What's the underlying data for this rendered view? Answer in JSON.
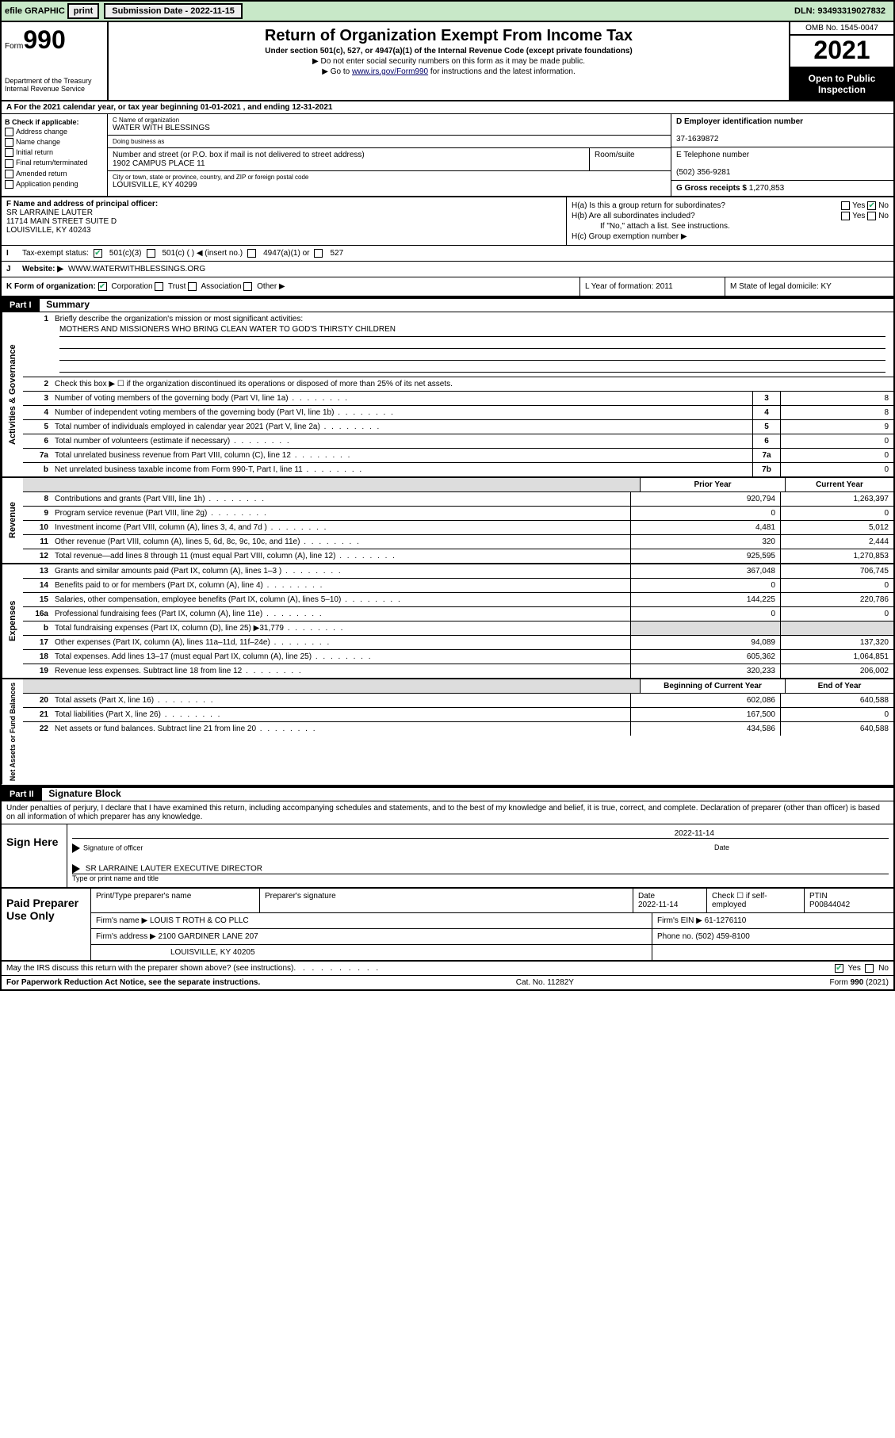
{
  "efile": {
    "label1": "efile GRAPHIC",
    "btn_print": "print",
    "sub_label": "Submission Date - 2022-11-15",
    "dln": "DLN: 93493319027832"
  },
  "header": {
    "form_prefix": "Form",
    "form_no": "990",
    "dept": "Department of the Treasury\nInternal Revenue Service",
    "title": "Return of Organization Exempt From Income Tax",
    "sub1": "Under section 501(c), 527, or 4947(a)(1) of the Internal Revenue Code (except private foundations)",
    "sub2": "▶ Do not enter social security numbers on this form as it may be made public.",
    "sub3_pre": "▶ Go to ",
    "sub3_link": "www.irs.gov/Form990",
    "sub3_post": " for instructions and the latest information.",
    "omb": "OMB No. 1545-0047",
    "year": "2021",
    "open": "Open to Public Inspection"
  },
  "lineA": "A For the 2021 calendar year, or tax year beginning 01-01-2021   , and ending 12-31-2021",
  "boxB": {
    "title": "B Check if applicable:",
    "opts": [
      "Address change",
      "Name change",
      "Initial return",
      "Final return/terminated",
      "Amended return",
      "Application pending"
    ]
  },
  "boxC": {
    "lbl_name": "C Name of organization",
    "name": "WATER WITH BLESSINGS",
    "lbl_dba": "Doing business as",
    "dba": "",
    "lbl_street": "Number and street (or P.O. box if mail is not delivered to street address)",
    "street": "1902 CAMPUS PLACE 11",
    "lbl_suite": "Room/suite",
    "suite": "",
    "lbl_city": "City or town, state or province, country, and ZIP or foreign postal code",
    "city": "LOUISVILLE, KY  40299"
  },
  "boxD": {
    "lbl": "D Employer identification number",
    "val": "37-1639872"
  },
  "boxE": {
    "lbl": "E Telephone number",
    "val": "(502) 356-9281"
  },
  "boxG": {
    "lbl": "G Gross receipts $",
    "val": "1,270,853"
  },
  "boxF": {
    "lbl": "F Name and address of principal officer:",
    "val": "SR LARRAINE LAUTER\n11714 MAIN STREET SUITE D\nLOUISVILLE, KY  40243"
  },
  "boxH": {
    "a": "H(a)  Is this a group return for subordinates?",
    "b": "H(b)  Are all subordinates included?",
    "b2": "If \"No,\" attach a list. See instructions.",
    "c": "H(c)  Group exemption number ▶"
  },
  "lineI": {
    "tag": "I",
    "lbl": "Tax-exempt status:",
    "o1": "501(c)(3)",
    "o2": "501(c) (   ) ◀ (insert no.)",
    "o3": "4947(a)(1) or",
    "o4": "527"
  },
  "lineJ": {
    "tag": "J",
    "lbl": "Website: ▶",
    "val": "WWW.WATERWITHBLESSINGS.ORG"
  },
  "lineK": {
    "k1_lbl": "K Form of organization:",
    "k1_o1": "Corporation",
    "k1_o2": "Trust",
    "k1_o3": "Association",
    "k1_o4": "Other ▶",
    "k2": "L Year of formation: 2011",
    "k3": "M State of legal domicile: KY"
  },
  "parts": {
    "p1": "Part I",
    "p1_title": "Summary",
    "p2": "Part II",
    "p2_title": "Signature Block"
  },
  "p1": {
    "side_gov": "Activities & Governance",
    "side_rev": "Revenue",
    "side_exp": "Expenses",
    "side_net": "Net Assets or Fund Balances",
    "l1": "Briefly describe the organization's mission or most significant activities:",
    "mission": "MOTHERS AND MISSIONERS WHO BRING CLEAN WATER TO GOD'S THIRSTY CHILDREN",
    "l2": "Check this box ▶ ☐  if the organization discontinued its operations or disposed of more than 25% of its net assets.",
    "rows_gov": [
      {
        "n": "3",
        "d": "Number of voting members of the governing body (Part VI, line 1a)",
        "box": "3",
        "v": "8"
      },
      {
        "n": "4",
        "d": "Number of independent voting members of the governing body (Part VI, line 1b)",
        "box": "4",
        "v": "8"
      },
      {
        "n": "5",
        "d": "Total number of individuals employed in calendar year 2021 (Part V, line 2a)",
        "box": "5",
        "v": "9"
      },
      {
        "n": "6",
        "d": "Total number of volunteers (estimate if necessary)",
        "box": "6",
        "v": "0"
      },
      {
        "n": "7a",
        "d": "Total unrelated business revenue from Part VIII, column (C), line 12",
        "box": "7a",
        "v": "0"
      },
      {
        "n": "b",
        "d": "Net unrelated business taxable income from Form 990-T, Part I, line 11",
        "box": "7b",
        "v": "0"
      }
    ],
    "col_prior": "Prior Year",
    "col_curr": "Current Year",
    "rows_rev": [
      {
        "n": "8",
        "d": "Contributions and grants (Part VIII, line 1h)",
        "p": "920,794",
        "c": "1,263,397"
      },
      {
        "n": "9",
        "d": "Program service revenue (Part VIII, line 2g)",
        "p": "0",
        "c": "0"
      },
      {
        "n": "10",
        "d": "Investment income (Part VIII, column (A), lines 3, 4, and 7d )",
        "p": "4,481",
        "c": "5,012"
      },
      {
        "n": "11",
        "d": "Other revenue (Part VIII, column (A), lines 5, 6d, 8c, 9c, 10c, and 11e)",
        "p": "320",
        "c": "2,444"
      },
      {
        "n": "12",
        "d": "Total revenue—add lines 8 through 11 (must equal Part VIII, column (A), line 12)",
        "p": "925,595",
        "c": "1,270,853"
      }
    ],
    "rows_exp": [
      {
        "n": "13",
        "d": "Grants and similar amounts paid (Part IX, column (A), lines 1–3 )",
        "p": "367,048",
        "c": "706,745"
      },
      {
        "n": "14",
        "d": "Benefits paid to or for members (Part IX, column (A), line 4)",
        "p": "0",
        "c": "0"
      },
      {
        "n": "15",
        "d": "Salaries, other compensation, employee benefits (Part IX, column (A), lines 5–10)",
        "p": "144,225",
        "c": "220,786"
      },
      {
        "n": "16a",
        "d": "Professional fundraising fees (Part IX, column (A), line 11e)",
        "p": "0",
        "c": "0"
      },
      {
        "n": "b",
        "d": "Total fundraising expenses (Part IX, column (D), line 25) ▶31,779",
        "p": "",
        "c": "",
        "grey": true
      },
      {
        "n": "17",
        "d": "Other expenses (Part IX, column (A), lines 11a–11d, 11f–24e)",
        "p": "94,089",
        "c": "137,320"
      },
      {
        "n": "18",
        "d": "Total expenses. Add lines 13–17 (must equal Part IX, column (A), line 25)",
        "p": "605,362",
        "c": "1,064,851"
      },
      {
        "n": "19",
        "d": "Revenue less expenses. Subtract line 18 from line 12",
        "p": "320,233",
        "c": "206,002"
      }
    ],
    "col_beg": "Beginning of Current Year",
    "col_end": "End of Year",
    "rows_net": [
      {
        "n": "20",
        "d": "Total assets (Part X, line 16)",
        "p": "602,086",
        "c": "640,588"
      },
      {
        "n": "21",
        "d": "Total liabilities (Part X, line 26)",
        "p": "167,500",
        "c": "0"
      },
      {
        "n": "22",
        "d": "Net assets or fund balances. Subtract line 21 from line 20",
        "p": "434,586",
        "c": "640,588"
      }
    ]
  },
  "p2": {
    "decl": "Under penalties of perjury, I declare that I have examined this return, including accompanying schedules and statements, and to the best of my knowledge and belief, it is true, correct, and complete. Declaration of preparer (other than officer) is based on all information of which preparer has any knowledge.",
    "sign_here": "Sign Here",
    "sig_officer": "Signature of officer",
    "sig_date_lbl": "Date",
    "sig_date": "2022-11-14",
    "officer_name": "SR LARRAINE LAUTER  EXECUTIVE DIRECTOR",
    "officer_lbl": "Type or print name and title",
    "paid": "Paid Preparer Use Only",
    "hdr_name": "Print/Type preparer's name",
    "hdr_sig": "Preparer's signature",
    "hdr_date": "Date",
    "date_val": "2022-11-14",
    "hdr_chk": "Check ☐ if self-employed",
    "hdr_ptin": "PTIN",
    "ptin": "P00844042",
    "firm_name_lbl": "Firm's name    ▶",
    "firm_name": "LOUIS T ROTH & CO PLLC",
    "firm_ein_lbl": "Firm's EIN ▶",
    "firm_ein": "61-1276110",
    "firm_addr_lbl": "Firm's address ▶",
    "firm_addr": "2100 GARDINER LANE 207",
    "firm_city": "LOUISVILLE, KY  40205",
    "phone_lbl": "Phone no.",
    "phone": "(502) 459-8100"
  },
  "footer": {
    "q": "May the IRS discuss this return with the preparer shown above? (see instructions)",
    "yes": "Yes",
    "no": "No",
    "pra": "For Paperwork Reduction Act Notice, see the separate instructions.",
    "cat": "Cat. No. 11282Y",
    "form": "Form 990 (2021)"
  }
}
